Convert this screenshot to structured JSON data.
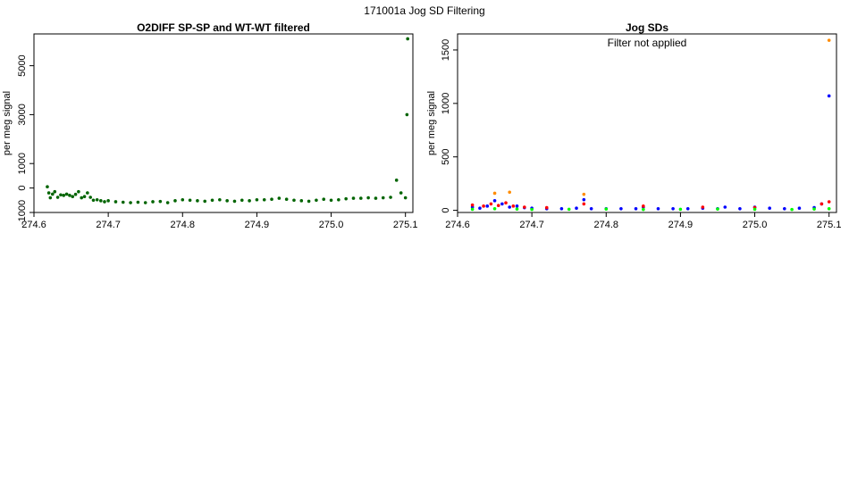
{
  "figure": {
    "title": "171001a   Jog SD Filtering"
  },
  "chart_data": [
    {
      "type": "scatter",
      "title": "O2DIFF SP-SP and WT-WT filtered",
      "xlabel": "",
      "ylabel": "per meg signal",
      "xlim": [
        274.6,
        275.11
      ],
      "ylim": [
        -1000,
        6300
      ],
      "x_ticks": [
        "274.6",
        "274.7",
        "274.8",
        "274.9",
        "275.0",
        "275.1"
      ],
      "y_ticks": [
        "-1000",
        "0",
        "1000",
        "3000",
        "5000"
      ],
      "grid": false,
      "colors": {
        "points": "#006400"
      },
      "series": [
        {
          "values_x": [
            274.618,
            274.62,
            274.622,
            274.625,
            274.628,
            274.632,
            274.636,
            274.64,
            274.644,
            274.648,
            274.652,
            274.656,
            274.66,
            274.664,
            274.668,
            274.672,
            274.676,
            274.68,
            274.685,
            274.69,
            274.695,
            274.7,
            274.71,
            274.72,
            274.73,
            274.74,
            274.75,
            274.76,
            274.77,
            274.78,
            274.79,
            274.8,
            274.81,
            274.82,
            274.83,
            274.84,
            274.85,
            274.86,
            274.87,
            274.88,
            274.89,
            274.9,
            274.91,
            274.92,
            274.93,
            274.94,
            274.95,
            274.96,
            274.97,
            274.98,
            274.99,
            275.0,
            275.01,
            275.02,
            275.03,
            275.04,
            275.05,
            275.06,
            275.07,
            275.08,
            275.088,
            275.094,
            275.1,
            275.102,
            275.103
          ],
          "values_y": [
            50,
            -200,
            -400,
            -250,
            -150,
            -380,
            -280,
            -300,
            -250,
            -300,
            -350,
            -260,
            -150,
            -400,
            -350,
            -200,
            -380,
            -500,
            -480,
            -520,
            -560,
            -520,
            -560,
            -580,
            -600,
            -580,
            -600,
            -560,
            -550,
            -600,
            -520,
            -480,
            -500,
            -520,
            -540,
            -500,
            -480,
            -520,
            -540,
            -500,
            -520,
            -480,
            -480,
            -460,
            -420,
            -460,
            -500,
            -520,
            -540,
            -500,
            -460,
            -500,
            -480,
            -440,
            -420,
            -420,
            -400,
            -420,
            -400,
            -380,
            320,
            -200,
            -400,
            3000,
            6100
          ]
        }
      ]
    },
    {
      "type": "scatter",
      "title": "Jog SDs",
      "annotation": "Filter not applied",
      "xlabel": "",
      "ylabel": "per meg signal",
      "xlim": [
        274.6,
        275.11
      ],
      "ylim": [
        -20,
        1650
      ],
      "x_ticks": [
        "274.6",
        "274.7",
        "274.8",
        "274.9",
        "275.0",
        "275.1"
      ],
      "y_ticks": [
        "0",
        "500",
        "1000",
        "1500"
      ],
      "grid": false,
      "colors": {
        "blue": "#0000ff",
        "red": "#ff0000",
        "green": "#00ff00",
        "orange": "#ff8c00"
      },
      "series": [
        {
          "values_x": [
            274.62,
            274.63,
            274.64,
            274.65,
            274.66,
            274.67,
            274.68,
            274.69,
            274.7,
            274.72,
            274.74,
            274.76,
            274.77,
            274.78,
            274.8,
            274.82,
            274.84,
            274.85,
            274.87,
            274.89,
            274.91,
            274.93,
            274.95,
            274.96,
            274.98,
            275.0,
            275.02,
            275.04,
            275.06,
            275.08,
            275.09,
            275.1
          ],
          "values_y": [
            30,
            20,
            40,
            90,
            60,
            30,
            40,
            25,
            20,
            15,
            15,
            20,
            100,
            15,
            15,
            15,
            15,
            30,
            15,
            15,
            15,
            20,
            15,
            30,
            15,
            30,
            20,
            15,
            20,
            25,
            60,
            1070
          ]
        },
        {
          "values_x": [
            274.62,
            274.635,
            274.645,
            274.655,
            274.665,
            274.675,
            274.69,
            274.72,
            274.77,
            274.85,
            274.93,
            275.0,
            275.09,
            275.1
          ],
          "values_y": [
            50,
            40,
            60,
            45,
            70,
            40,
            30,
            25,
            60,
            40,
            30,
            25,
            60,
            80
          ]
        },
        {
          "values_x": [
            274.62,
            274.65,
            274.68,
            274.7,
            274.75,
            274.8,
            274.85,
            274.9,
            274.95,
            275.0,
            275.05,
            275.08,
            275.1
          ],
          "values_y": [
            10,
            15,
            12,
            8,
            10,
            12,
            8,
            10,
            12,
            10,
            8,
            12,
            15
          ]
        },
        {
          "values_x": [
            274.65,
            274.67,
            274.77,
            275.1
          ],
          "values_y": [
            160,
            170,
            150,
            1590
          ]
        }
      ]
    }
  ]
}
